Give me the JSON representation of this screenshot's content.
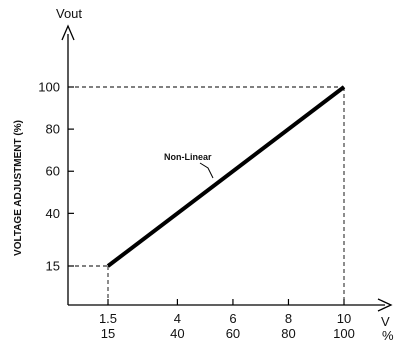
{
  "chart_data": {
    "type": "line",
    "y_axis_title": "Vout",
    "ylabel": "VOLTAGE ADJUSTMENT (%)",
    "x_unit_primary": "V",
    "x_unit_secondary": "%",
    "x_ticks": [
      {
        "v": 1.5,
        "top": "1.5",
        "bottom": "15"
      },
      {
        "v": 4,
        "top": "4",
        "bottom": "40"
      },
      {
        "v": 6,
        "top": "6",
        "bottom": "60"
      },
      {
        "v": 8,
        "top": "8",
        "bottom": "80"
      },
      {
        "v": 10,
        "top": "10",
        "bottom": "100"
      }
    ],
    "y_ticks": [
      {
        "v": 15,
        "label": "15"
      },
      {
        "v": 40,
        "label": "40"
      },
      {
        "v": 60,
        "label": "60"
      },
      {
        "v": 80,
        "label": "80"
      },
      {
        "v": 100,
        "label": "100"
      }
    ],
    "xlim": [
      0,
      11.2
    ],
    "ylim": [
      0,
      118
    ],
    "series": [
      {
        "name": "Non-Linear",
        "x": [
          1.5,
          10
        ],
        "y": [
          15,
          100
        ]
      }
    ],
    "annotation": "Non-Linear",
    "grid": false
  }
}
